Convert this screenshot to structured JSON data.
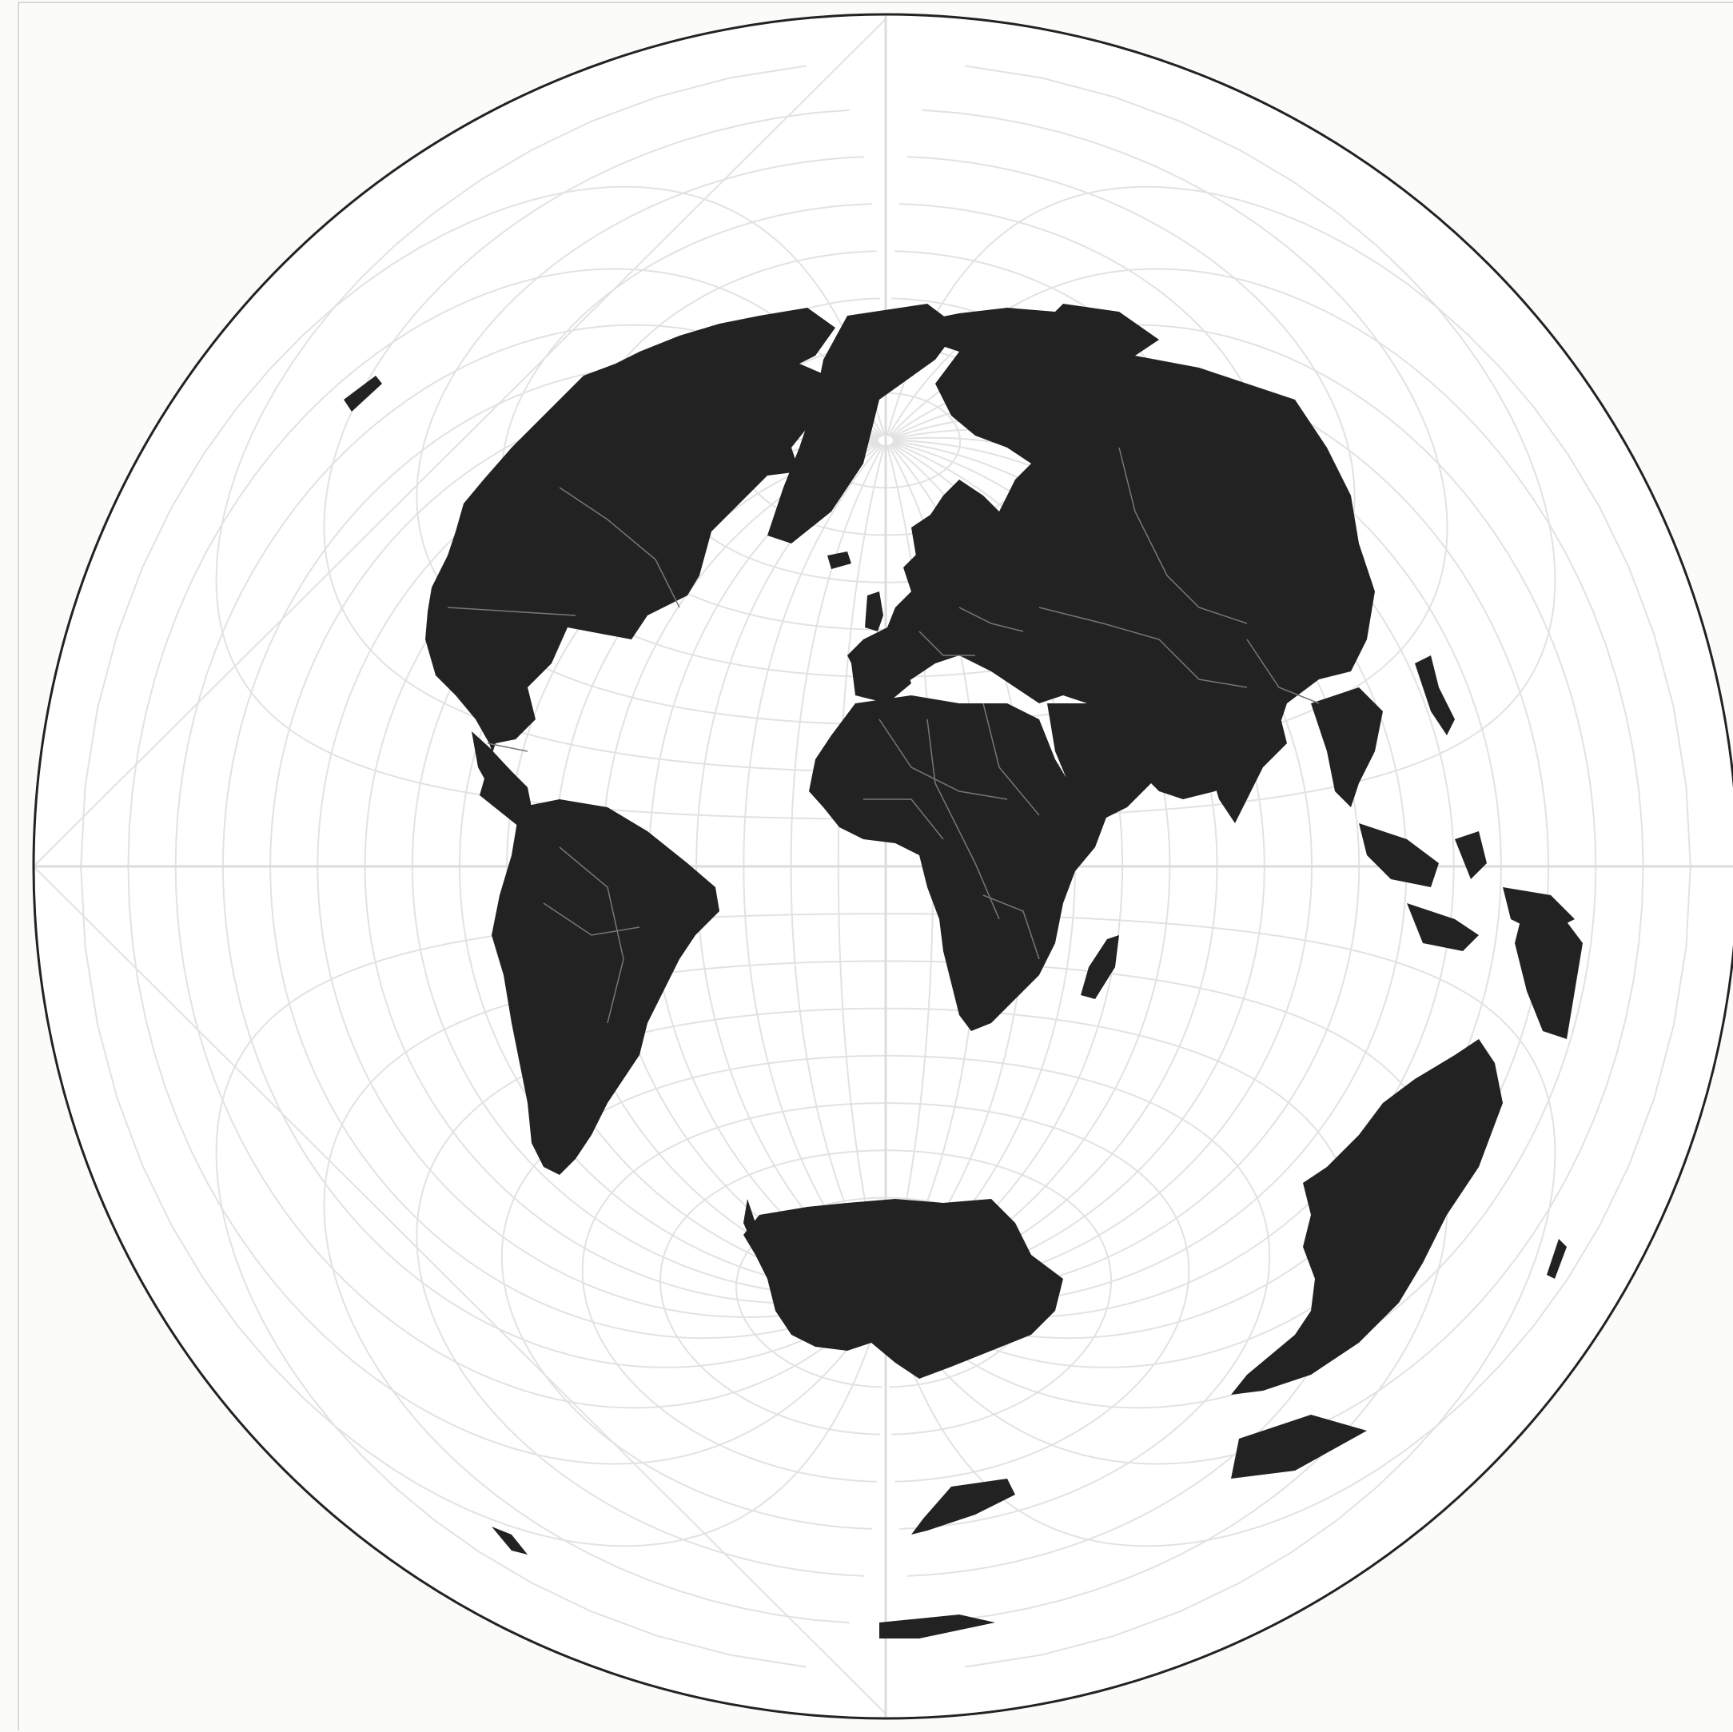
{
  "map": {
    "projection": "azimuthal-equidistant",
    "center": {
      "lat": 0,
      "lon": 0
    },
    "graticule_step_deg": 10,
    "colors": {
      "background": "#fbfbf9",
      "sphere_fill": "#ffffff",
      "sphere_outline": "#222222",
      "land": "#222222",
      "borders": "#777777",
      "graticule": "#e2e2e2",
      "axes": "#dcdcdc"
    },
    "regions": [
      "north-america",
      "greenland",
      "south-america",
      "europe",
      "africa",
      "madagascar",
      "asia",
      "arabia",
      "india",
      "southeast-asia",
      "indonesia",
      "japan",
      "australia",
      "antarctica",
      "new-zealand",
      "iceland",
      "uk"
    ]
  }
}
